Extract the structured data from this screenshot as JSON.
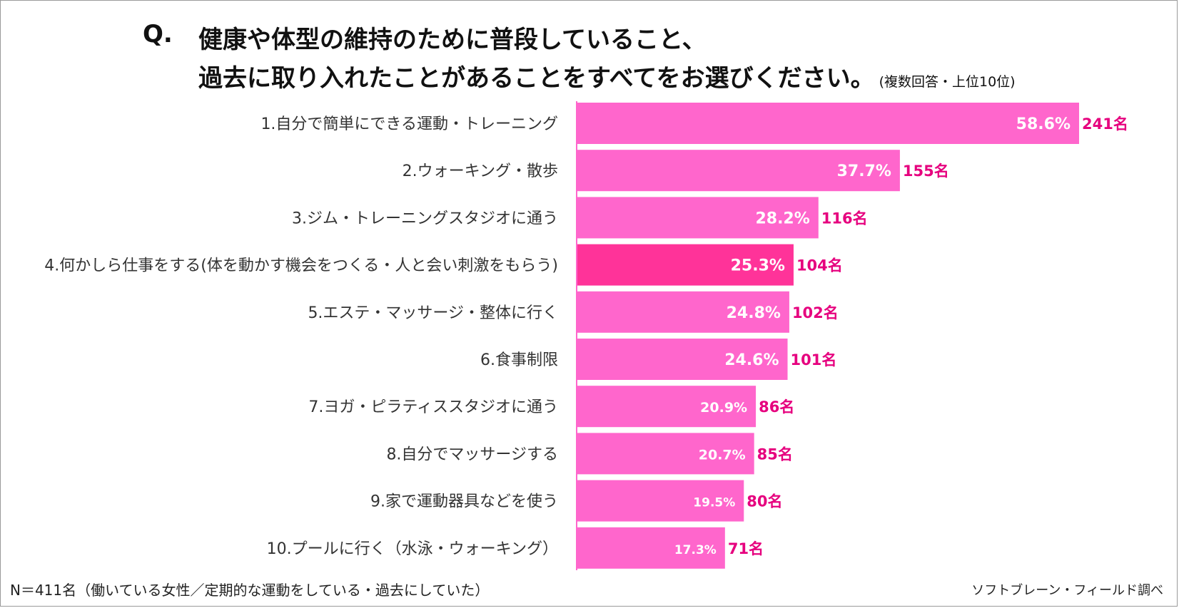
{
  "question": {
    "prefix": "Q.",
    "line1": "健康や体型の維持のために普段していること、",
    "line2": "過去に取り入れたことがあることをすべてをお選びください。",
    "note": "(複数回答・上位10位)"
  },
  "chart_data": {
    "type": "bar",
    "orientation": "horizontal",
    "categories": [
      "1.自分で簡単にできる運動・トレーニング",
      "2.ウォーキング・散歩",
      "3.ジム・トレーニングスタジオに通う",
      "4.何かしら仕事をする(体を動かす機会をつくる・人と会い刺激をもらう)",
      "5.エステ・マッサージ・整体に行く",
      "6.食事制限",
      "7.ヨガ・ピラティススタジオに通う",
      "8.自分でマッサージする",
      "9.家で運動器具などを使う",
      "10.プールに行く（水泳・ウォーキング）"
    ],
    "values": [
      58.6,
      37.7,
      28.2,
      25.3,
      24.8,
      24.6,
      20.9,
      20.7,
      19.5,
      17.3
    ],
    "value_labels": [
      "58.6%",
      "37.7%",
      "28.2%",
      "25.3%",
      "24.8%",
      "24.6%",
      "20.9%",
      "20.7%",
      "19.5%",
      "17.3%"
    ],
    "count_labels": [
      "241名",
      "155名",
      "116名",
      "104名",
      "102名",
      "101名",
      "86名",
      "85名",
      "80名",
      "71名"
    ],
    "highlight_index": 3,
    "xlim": [
      0,
      100
    ],
    "grid": false,
    "colors": {
      "bar": "#ff66cc",
      "highlight": "#ff3399",
      "count_text": "#e6007e",
      "value_text": "#ffffff",
      "axis": "#ff66cc"
    }
  },
  "footer": {
    "sample": "N＝411名（働いている女性／定期的な運動をしている・過去にしていた）",
    "source": "ソフトブレーン・フィールド調べ"
  }
}
